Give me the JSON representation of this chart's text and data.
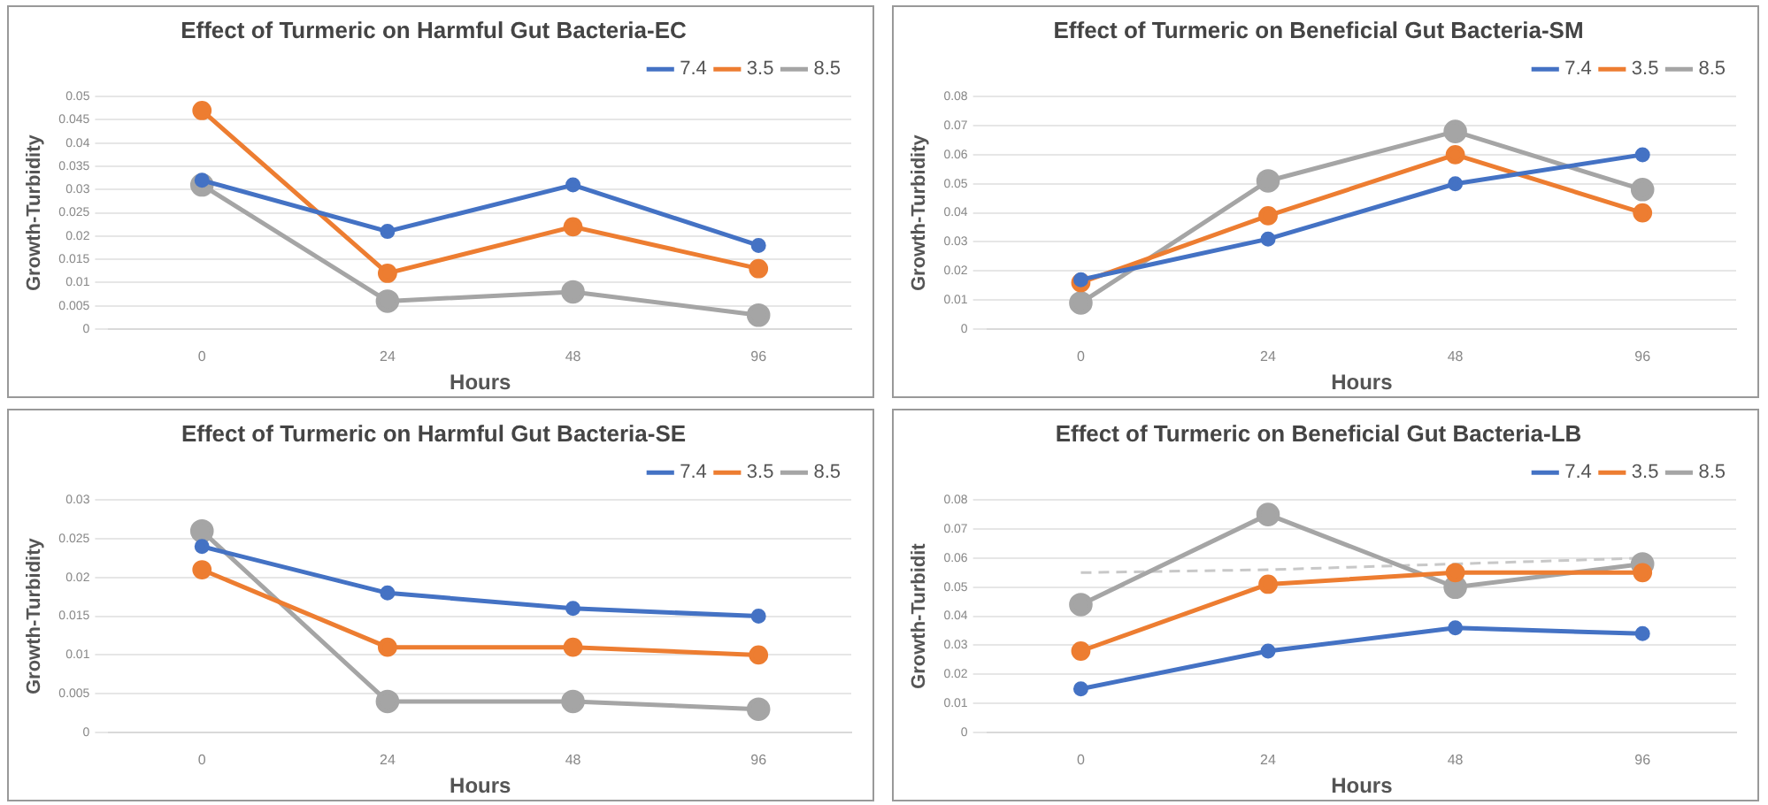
{
  "chart_data": [
    {
      "type": "line",
      "title": "Effect of Turmeric on Harmful Gut Bacteria-EC",
      "xlabel": "Hours",
      "ylabel": "Growth-Turbidity",
      "categories": [
        "0",
        "24",
        "48",
        "96"
      ],
      "ylim": [
        0,
        0.05
      ],
      "yticks": [
        0,
        0.005,
        0.01,
        0.015,
        0.02,
        0.025,
        0.03,
        0.035,
        0.04,
        0.045,
        0.05
      ],
      "grid": "y",
      "legend": "top right",
      "marker": "circle",
      "series": [
        {
          "name": "7.4",
          "color": "#4472c4",
          "values": [
            0.032,
            0.021,
            0.031,
            0.018
          ]
        },
        {
          "name": "3.5",
          "color": "#ed7d31",
          "values": [
            0.047,
            0.012,
            0.022,
            0.013
          ]
        },
        {
          "name": "8.5",
          "color": "#a5a5a5",
          "values": [
            0.031,
            0.006,
            0.008,
            0.003
          ]
        }
      ]
    },
    {
      "type": "line",
      "title": "Effect of Turmeric on Beneficial Gut Bacteria-SM",
      "xlabel": "Hours",
      "ylabel": "Growth-Turbidity",
      "categories": [
        "0",
        "24",
        "48",
        "96"
      ],
      "ylim": [
        0,
        0.08
      ],
      "yticks": [
        0,
        0.01,
        0.02,
        0.03,
        0.04,
        0.05,
        0.06,
        0.07,
        0.08
      ],
      "grid": "y",
      "legend": "top right",
      "marker": "circle",
      "series": [
        {
          "name": "7.4",
          "color": "#4472c4",
          "values": [
            0.017,
            0.031,
            0.05,
            0.06
          ]
        },
        {
          "name": "3.5",
          "color": "#ed7d31",
          "values": [
            0.016,
            0.039,
            0.06,
            0.04
          ]
        },
        {
          "name": "8.5",
          "color": "#a5a5a5",
          "values": [
            0.009,
            0.051,
            0.068,
            0.048
          ]
        }
      ]
    },
    {
      "type": "line",
      "title": "Effect of Turmeric on Harmful Gut Bacteria-SE",
      "xlabel": "Hours",
      "ylabel": "Growth-Turbidity",
      "categories": [
        "0",
        "24",
        "48",
        "96"
      ],
      "ylim": [
        0,
        0.03
      ],
      "yticks": [
        0,
        0.005,
        0.01,
        0.015,
        0.02,
        0.025,
        0.03
      ],
      "grid": "y",
      "legend": "top right",
      "marker": "circle",
      "series": [
        {
          "name": "7.4",
          "color": "#4472c4",
          "values": [
            0.024,
            0.018,
            0.016,
            0.015
          ]
        },
        {
          "name": "3.5",
          "color": "#ed7d31",
          "values": [
            0.021,
            0.011,
            0.011,
            0.01
          ]
        },
        {
          "name": "8.5",
          "color": "#a5a5a5",
          "values": [
            0.026,
            0.004,
            0.004,
            0.003
          ]
        }
      ]
    },
    {
      "type": "line",
      "title": "Effect of Turmeric on Beneficial Gut Bacteria-LB",
      "xlabel": "Hours",
      "ylabel": "Growth-Turbidit",
      "categories": [
        "0",
        "24",
        "48",
        "96"
      ],
      "ylim": [
        0,
        0.08
      ],
      "yticks": [
        0,
        0.01,
        0.02,
        0.03,
        0.04,
        0.05,
        0.06,
        0.07,
        0.08
      ],
      "grid": "y",
      "legend": "top right",
      "marker": "circle",
      "series": [
        {
          "name": "7.4",
          "color": "#4472c4",
          "values": [
            0.015,
            0.028,
            0.036,
            0.034
          ]
        },
        {
          "name": "3.5",
          "color": "#ed7d31",
          "values": [
            0.028,
            0.051,
            0.055,
            0.055
          ]
        },
        {
          "name": "8.5",
          "color": "#a5a5a5",
          "values": [
            0.044,
            0.075,
            0.05,
            0.058
          ]
        },
        {
          "color": "#c8c8c8",
          "values": [
            0.055,
            0.056,
            0.058,
            0.06
          ],
          "marker": "none",
          "line_style": "dashed"
        }
      ]
    }
  ]
}
